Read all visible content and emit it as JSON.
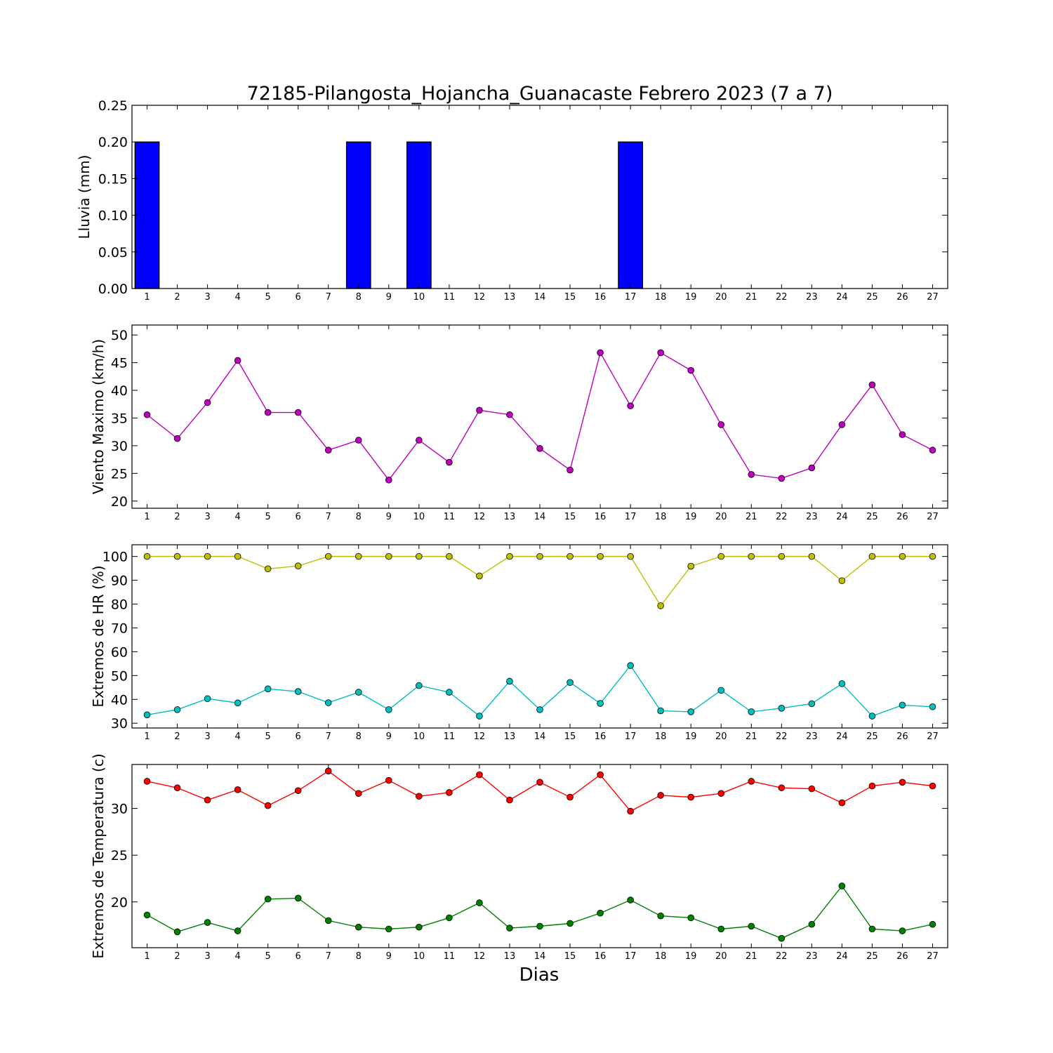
{
  "title": "72185-Pilangosta_Hojancha_Guanacaste Febrero 2023  (7 a 7)",
  "xlabel": "Dias",
  "chart_data": [
    {
      "type": "bar",
      "ylabel": "Lluvia (mm)",
      "x": [
        1,
        2,
        3,
        4,
        5,
        6,
        7,
        8,
        9,
        10,
        11,
        12,
        13,
        14,
        15,
        16,
        17,
        18,
        19,
        20,
        21,
        22,
        23,
        24,
        25,
        26,
        27
      ],
      "ylim": [
        0,
        0.25
      ],
      "yticks": [
        "0.00",
        "0.05",
        "0.10",
        "0.15",
        "0.20",
        "0.25"
      ],
      "series": [
        {
          "values": [
            0.2,
            0,
            0,
            0,
            0,
            0,
            0,
            0.2,
            0,
            0.2,
            0,
            0,
            0,
            0,
            0,
            0,
            0.2,
            0,
            0,
            0,
            0,
            0,
            0,
            0,
            0,
            0,
            0
          ],
          "color": "#0000ff"
        }
      ]
    },
    {
      "type": "line",
      "ylabel": "Viento Maximo (km/h)",
      "x": [
        1,
        2,
        3,
        4,
        5,
        6,
        7,
        8,
        9,
        10,
        11,
        12,
        13,
        14,
        15,
        16,
        17,
        18,
        19,
        20,
        21,
        22,
        23,
        24,
        25,
        26,
        27
      ],
      "ylim": [
        18.7,
        51.8
      ],
      "yticks": [
        "20",
        "25",
        "30",
        "35",
        "40",
        "45",
        "50"
      ],
      "series": [
        {
          "values": [
            35.6,
            31.3,
            37.8,
            45.4,
            36.0,
            36.0,
            29.2,
            31.0,
            23.8,
            31.0,
            27.0,
            36.4,
            35.6,
            29.5,
            25.6,
            46.8,
            37.2,
            46.8,
            43.6,
            33.8,
            24.8,
            24.1,
            26.0,
            33.8,
            41.0,
            32.0,
            29.2
          ],
          "color": "#bf00bf"
        }
      ]
    },
    {
      "type": "line",
      "ylabel": "Extremos de HR (%)",
      "x": [
        1,
        2,
        3,
        4,
        5,
        6,
        7,
        8,
        9,
        10,
        11,
        12,
        13,
        14,
        15,
        16,
        17,
        18,
        19,
        20,
        21,
        22,
        23,
        24,
        25,
        26,
        27
      ],
      "ylim": [
        28.0,
        104.9
      ],
      "yticks": [
        "30",
        "40",
        "50",
        "60",
        "70",
        "80",
        "90",
        "100"
      ],
      "series": [
        {
          "values": [
            100,
            100,
            100,
            100,
            94.8,
            96.0,
            100,
            100,
            100,
            100,
            100,
            91.8,
            100,
            100,
            100,
            100,
            100,
            79.3,
            95.9,
            100,
            100,
            100,
            100,
            89.8,
            100,
            100,
            100
          ],
          "color": "#bfbf00"
        },
        {
          "values": [
            33.5,
            35.7,
            40.3,
            38.5,
            44.4,
            43.3,
            38.6,
            43.0,
            35.7,
            45.8,
            43.0,
            33.0,
            47.6,
            35.7,
            47.1,
            38.3,
            54.2,
            35.2,
            34.8,
            43.8,
            34.8,
            36.3,
            38.2,
            46.6,
            33.0,
            37.6,
            36.9
          ],
          "color": "#00bfbf"
        }
      ]
    },
    {
      "type": "line",
      "ylabel": "Extremos de Temperatura (c)",
      "x": [
        1,
        2,
        3,
        4,
        5,
        6,
        7,
        8,
        9,
        10,
        11,
        12,
        13,
        14,
        15,
        16,
        17,
        18,
        19,
        20,
        21,
        22,
        23,
        24,
        25,
        26,
        27
      ],
      "ylim": [
        15.1,
        34.7
      ],
      "yticks": [
        "20",
        "25",
        "30"
      ],
      "series": [
        {
          "values": [
            32.9,
            32.2,
            30.9,
            32.0,
            30.3,
            31.9,
            34.0,
            31.6,
            33.0,
            31.3,
            31.7,
            33.6,
            30.9,
            32.8,
            31.2,
            33.6,
            29.7,
            31.4,
            31.2,
            31.6,
            32.9,
            32.2,
            32.1,
            30.6,
            32.4,
            32.8,
            32.4
          ],
          "color": "#ff0000"
        },
        {
          "values": [
            18.6,
            16.8,
            17.8,
            16.9,
            20.3,
            20.4,
            18.0,
            17.3,
            17.1,
            17.3,
            18.3,
            19.9,
            17.2,
            17.4,
            17.7,
            18.8,
            20.2,
            18.5,
            18.3,
            17.1,
            17.4,
            16.1,
            17.6,
            21.7,
            17.1,
            16.9,
            17.6
          ],
          "color": "#008000"
        }
      ]
    }
  ]
}
